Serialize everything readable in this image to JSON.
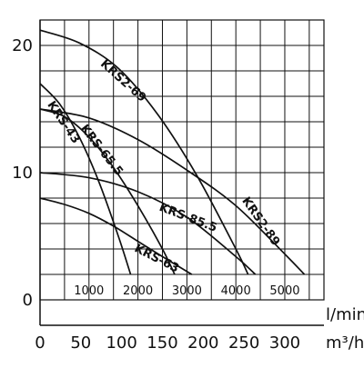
{
  "chart_data": {
    "type": "line",
    "title": "",
    "ylabel": "",
    "ylim": [
      0,
      22
    ],
    "y_ticks": [
      "0",
      "10",
      "20"
    ],
    "grid": true,
    "xlim_lpm": [
      0,
      5800
    ],
    "x_ticks_lpm": [
      "1000",
      "2000",
      "3000",
      "4000",
      "5000"
    ],
    "x_unit_lpm": "l/min",
    "x_ticks_m3h": [
      "0",
      "50",
      "100",
      "150",
      "200",
      "250",
      "300"
    ],
    "x_unit_m3h": "m³/h",
    "series": [
      {
        "name": "KRS2-69",
        "x": [
          0,
          800,
          1600,
          2400,
          3200,
          4000,
          4250
        ],
        "y": [
          21.2,
          20.2,
          18.2,
          14.6,
          9.8,
          4.0,
          2.0
        ]
      },
      {
        "name": "KRS2-89",
        "x": [
          0,
          1000,
          2000,
          3000,
          4000,
          5000,
          5400
        ],
        "y": [
          15.0,
          14.3,
          12.6,
          10.2,
          7.4,
          3.6,
          2.0
        ]
      },
      {
        "name": "KRS-43",
        "x": [
          0,
          400,
          800,
          1200,
          1600,
          1850
        ],
        "y": [
          17.0,
          15.4,
          12.8,
          9.3,
          5.0,
          2.0
        ]
      },
      {
        "name": "KRS-65.5",
        "x": [
          0,
          500,
          1000,
          1500,
          2000,
          2500,
          2750
        ],
        "y": [
          15.0,
          14.4,
          12.8,
          10.4,
          7.4,
          4.0,
          2.0
        ]
      },
      {
        "name": "KRS-85.5",
        "x": [
          0,
          1000,
          2000,
          3000,
          4000,
          4400
        ],
        "y": [
          10.0,
          9.6,
          8.5,
          6.5,
          3.4,
          2.0
        ]
      },
      {
        "name": "KRS-63",
        "x": [
          0,
          500,
          1000,
          1500,
          2000,
          2500,
          3100
        ],
        "y": [
          8.0,
          7.5,
          6.8,
          5.8,
          4.6,
          3.4,
          2.0
        ]
      }
    ]
  }
}
